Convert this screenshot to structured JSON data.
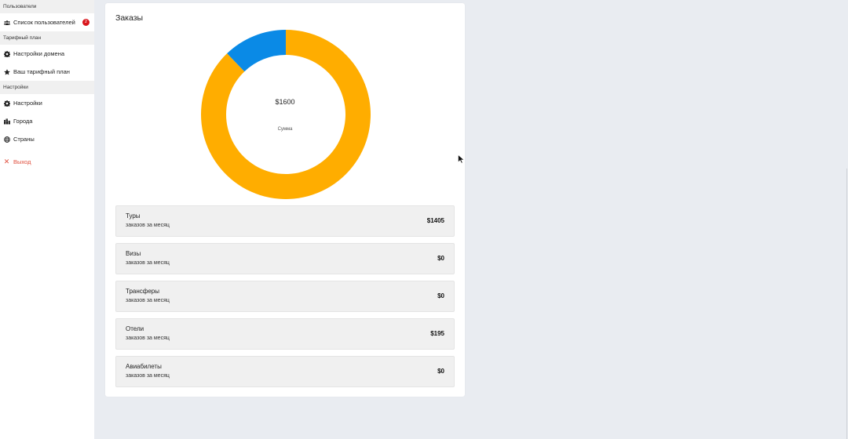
{
  "sidebar": {
    "sections": [
      {
        "title": "Пользователи",
        "items": [
          {
            "label": "Список пользователей",
            "icon": "users-icon",
            "badge": "2"
          }
        ]
      },
      {
        "title": "Тарифный план",
        "items": [
          {
            "label": "Настройки домена",
            "icon": "gear-icon"
          },
          {
            "label": "Ваш тарифный план",
            "icon": "star-icon"
          }
        ]
      },
      {
        "title": "Настройки",
        "items": [
          {
            "label": "Настройки",
            "icon": "gear-icon"
          },
          {
            "label": "Города",
            "icon": "city-icon"
          },
          {
            "label": "Страны",
            "icon": "globe-icon"
          }
        ]
      }
    ],
    "logout": {
      "label": "Выход",
      "icon": "close-icon"
    }
  },
  "orders": {
    "title": "Заказы",
    "total": "$1600",
    "total_label": "Сумма",
    "rows": [
      {
        "name": "Туры",
        "sub": "заказов за месяц",
        "value": "$1405"
      },
      {
        "name": "Визы",
        "sub": "заказов за месяц",
        "value": "$0"
      },
      {
        "name": "Трансферы",
        "sub": "заказов за месяц",
        "value": "$0"
      },
      {
        "name": "Отели",
        "sub": "заказов за месяц",
        "value": "$195"
      },
      {
        "name": "Авиабилеты",
        "sub": "заказов за месяц",
        "value": "$0"
      }
    ]
  },
  "chart_data": {
    "type": "pie",
    "variant": "donut",
    "categories": [
      "Туры",
      "Визы",
      "Трансферы",
      "Отели",
      "Авиабилеты"
    ],
    "values": [
      1405,
      0,
      0,
      195,
      0
    ],
    "colors": [
      "#ffad00",
      "#5cb85c",
      "#9b59b6",
      "#0a8ae6",
      "#e74c3c"
    ]
  }
}
